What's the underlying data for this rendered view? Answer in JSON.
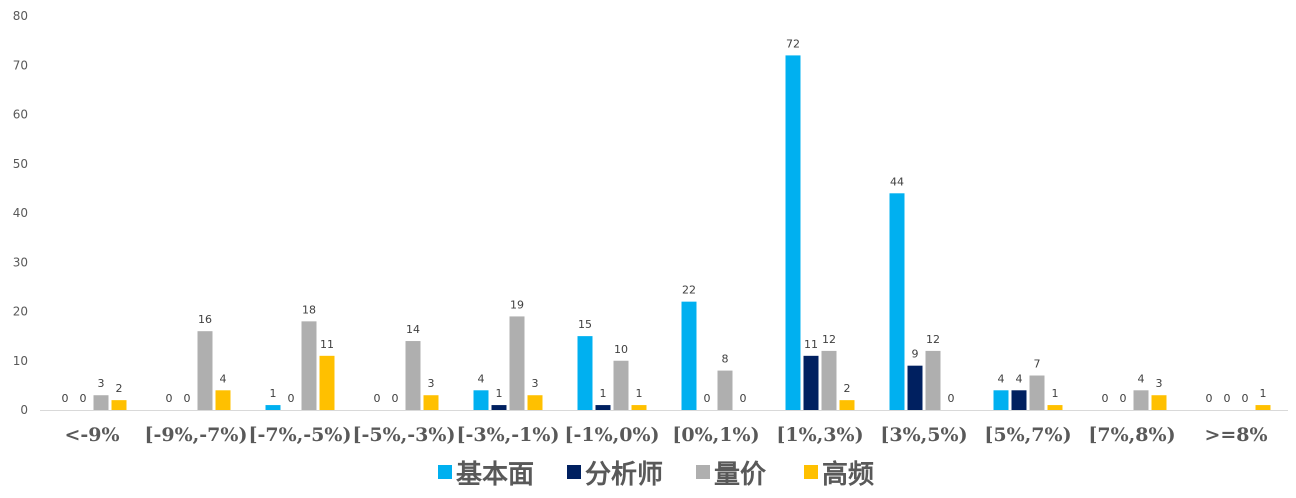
{
  "chart_data": {
    "type": "bar",
    "title": "",
    "xlabel": "",
    "ylabel": "",
    "ylim": [
      0,
      80
    ],
    "yticks": [
      0,
      10,
      20,
      30,
      40,
      50,
      60,
      70,
      80
    ],
    "grid": false,
    "legend_position": "bottom",
    "categories": [
      "<-9%",
      "[-9%,-7%)",
      "[-7%,-5%)",
      "[-5%,-3%)",
      "[-3%,-1%)",
      "[-1%,0%)",
      "[0%,1%)",
      "[1%,3%)",
      "[3%,5%)",
      "[5%,7%)",
      "[7%,8%)",
      ">=8%"
    ],
    "series": [
      {
        "name": "基本面",
        "color": "#00b0f0",
        "values": [
          0,
          0,
          1,
          0,
          4,
          15,
          22,
          72,
          44,
          4,
          0,
          0
        ]
      },
      {
        "name": "分析师",
        "color": "#002060",
        "values": [
          0,
          0,
          0,
          0,
          1,
          1,
          0,
          11,
          9,
          4,
          0,
          0
        ]
      },
      {
        "name": "量价",
        "color": "#afafaf",
        "values": [
          3,
          16,
          18,
          14,
          19,
          10,
          8,
          12,
          12,
          7,
          4,
          0
        ]
      },
      {
        "name": "高频",
        "color": "#ffc000",
        "values": [
          2,
          4,
          11,
          3,
          3,
          1,
          0,
          2,
          0,
          1,
          3,
          1
        ]
      }
    ]
  }
}
